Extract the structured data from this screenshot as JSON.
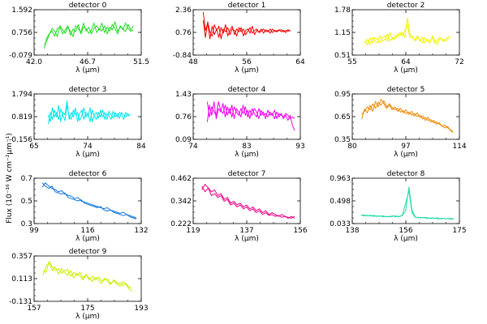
{
  "figure": {
    "ylabel": "Flux (10⁻¹⁶ W cm⁻²µm⁻¹)",
    "xlabel": "λ (µm)"
  },
  "chart_data": [
    {
      "type": "line",
      "title": "detector 0",
      "color": "#22dd22",
      "xlim": [
        42.0,
        51.5
      ],
      "ylim": [
        -0.079,
        1.592
      ],
      "xticks": [
        "42.0",
        "46.7",
        "51.5"
      ],
      "yticks": [
        "-0.079",
        "0.756",
        "1.592"
      ],
      "x_start": 42.9,
      "x_end": 50.8,
      "series": [
        {
          "values": [
            0.15,
            0.55,
            0.72,
            0.8,
            0.62,
            0.9,
            0.95,
            0.7,
            0.85,
            1.0,
            0.65,
            0.88,
            0.78,
            1.05,
            0.7,
            0.95,
            0.9,
            0.72,
            0.85,
            1.1,
            0.75,
            0.9,
            0.8,
            1.0,
            0.7,
            0.95,
            0.85,
            1.15,
            0.8,
            0.95,
            0.9,
            0.78,
            1.05,
            0.85,
            1.0
          ]
        },
        {
          "values": [
            0.3,
            0.45,
            0.7,
            0.9,
            0.8,
            0.6,
            1.0,
            0.85,
            0.72,
            0.95,
            0.8,
            0.6,
            1.0,
            0.9,
            0.75,
            1.1,
            0.8,
            0.95,
            0.7,
            0.9,
            1.0,
            0.85,
            1.1,
            0.75,
            0.95,
            0.8,
            1.05,
            0.9,
            0.7,
            1.0,
            0.85,
            1.1,
            0.9,
            0.8,
            0.85
          ]
        }
      ]
    },
    {
      "type": "line",
      "title": "detector 1",
      "color": "#ee0000",
      "xlim": [
        48,
        64
      ],
      "ylim": [
        -0.84,
        2.36
      ],
      "xticks": [
        "48",
        "56",
        "64"
      ],
      "yticks": [
        "-0.84",
        "0.76",
        "2.36"
      ],
      "x_start": 49.5,
      "x_end": 62.5,
      "series": [
        {
          "values": [
            2.2,
            0.9,
            1.4,
            0.3,
            1.2,
            0.6,
            1.0,
            0.4,
            1.1,
            0.7,
            1.3,
            0.5,
            0.9,
            1.2,
            0.6,
            1.0,
            0.8,
            1.1,
            0.5,
            0.9,
            1.0,
            0.7,
            1.2,
            0.6,
            0.9,
            0.8,
            1.0,
            0.7,
            0.95,
            0.8,
            1.0,
            0.75,
            0.9,
            0.85,
            0.95,
            0.8,
            0.9,
            0.75,
            0.95,
            0.85
          ]
        },
        {
          "values": [
            1.6,
            0.4,
            1.5,
            0.8,
            0.5,
            1.3,
            0.9,
            1.2,
            0.3,
            1.0,
            0.8,
            1.1,
            0.6,
            1.0,
            0.9,
            0.5,
            1.1,
            0.8,
            1.0,
            0.6,
            0.85,
            1.1,
            0.7,
            0.9,
            1.0,
            0.75,
            0.85,
            1.0,
            0.8,
            0.9,
            0.7,
            1.0,
            0.85,
            0.8,
            0.9,
            0.95,
            0.8,
            0.9,
            0.85,
            0.9
          ]
        }
      ]
    },
    {
      "type": "line",
      "title": "detector 2",
      "color": "#f2f200",
      "xlim": [
        55,
        72
      ],
      "ylim": [
        0.51,
        1.78
      ],
      "xticks": [
        "55",
        "64",
        "72"
      ],
      "yticks": [
        "0.51",
        "1.15",
        "1.78"
      ],
      "x_start": 57,
      "x_end": 70.5,
      "series": [
        {
          "values": [
            0.85,
            0.95,
            0.8,
            1.0,
            0.9,
            0.85,
            1.05,
            0.9,
            0.95,
            1.1,
            0.9,
            1.0,
            0.95,
            1.1,
            1.05,
            1.15,
            1.0,
            1.55,
            1.1,
            1.0,
            0.95,
            1.05,
            0.9,
            1.0,
            0.85,
            0.95,
            0.9,
            1.0,
            0.85,
            0.95,
            1.0,
            0.9,
            0.95,
            1.0,
            1.05
          ]
        },
        {
          "values": [
            0.9,
            0.8,
            1.0,
            0.85,
            1.0,
            0.95,
            0.85,
            1.0,
            1.05,
            0.9,
            1.15,
            0.95,
            1.05,
            1.0,
            1.15,
            1.05,
            1.2,
            1.35,
            1.0,
            1.05,
            0.9,
            1.0,
            0.95,
            0.85,
            1.0,
            0.9,
            0.85,
            1.05,
            0.9,
            0.8,
            1.0,
            0.95,
            0.9,
            0.95,
            1.0
          ]
        }
      ]
    },
    {
      "type": "line",
      "title": "detector 3",
      "color": "#00e5ee",
      "xlim": [
        65,
        84
      ],
      "ylim": [
        -0.156,
        1.794
      ],
      "xticks": [
        "65",
        "74",
        "84"
      ],
      "yticks": [
        "-0.156",
        "0.819",
        "1.794"
      ],
      "x_start": 67.5,
      "x_end": 82,
      "series": [
        {
          "values": [
            0.5,
            1.0,
            0.7,
            1.1,
            0.8,
            1.3,
            0.6,
            1.0,
            0.9,
            1.5,
            0.7,
            1.0,
            0.8,
            1.2,
            0.6,
            0.95,
            1.1,
            0.7,
            1.0,
            0.85,
            1.2,
            0.6,
            0.9,
            1.0,
            0.75,
            1.1,
            0.8,
            1.0,
            0.7,
            1.05,
            0.9,
            0.75,
            1.0,
            0.8,
            1.0,
            0.9,
            0.7,
            1.0,
            0.85,
            0.9
          ]
        },
        {
          "values": [
            0.9,
            0.6,
            1.2,
            0.8,
            1.0,
            0.7,
            1.15,
            0.9,
            0.65,
            1.3,
            0.85,
            0.7,
            1.1,
            0.9,
            1.0,
            0.65,
            0.85,
            1.2,
            0.8,
            0.95,
            0.6,
            1.1,
            0.85,
            0.7,
            1.0,
            0.8,
            1.1,
            0.7,
            0.95,
            0.85,
            0.7,
            1.05,
            0.8,
            0.95,
            0.75,
            1.0,
            0.9,
            0.8,
            0.95,
            0.85
          ]
        }
      ]
    },
    {
      "type": "line",
      "title": "detector 4",
      "color": "#ee00ee",
      "xlim": [
        74,
        93
      ],
      "ylim": [
        0.09,
        1.43
      ],
      "xticks": [
        "74",
        "83",
        "93"
      ],
      "yticks": [
        "0.09",
        "0.76",
        "1.43"
      ],
      "x_start": 76.5,
      "x_end": 92,
      "series": [
        {
          "values": [
            0.6,
            1.1,
            0.8,
            1.2,
            0.7,
            1.0,
            0.9,
            1.15,
            0.75,
            1.05,
            0.85,
            1.1,
            0.7,
            1.0,
            0.9,
            0.75,
            1.1,
            0.8,
            0.95,
            0.7,
            1.0,
            0.85,
            0.75,
            1.0,
            0.8,
            0.9,
            0.7,
            0.95,
            0.8,
            0.85,
            0.7,
            0.9,
            0.75,
            0.85,
            0.7,
            0.8,
            0.65,
            0.8,
            0.5,
            0.35
          ]
        },
        {
          "values": [
            1.2,
            0.75,
            1.05,
            0.9,
            0.8,
            1.2,
            0.95,
            0.85,
            1.1,
            0.8,
            1.0,
            0.75,
            1.05,
            0.9,
            0.8,
            1.0,
            0.85,
            1.05,
            0.75,
            0.95,
            0.8,
            1.0,
            0.9,
            0.7,
            0.95,
            0.8,
            0.85,
            0.75,
            0.9,
            0.8,
            0.95,
            0.7,
            0.85,
            0.8,
            0.75,
            0.85,
            0.8,
            0.7,
            0.75,
            0.7
          ]
        }
      ]
    },
    {
      "type": "line",
      "title": "detector 5",
      "color": "#ee8800",
      "xlim": [
        80,
        114
      ],
      "ylim": [
        0.35,
        0.95
      ],
      "xticks": [
        "80",
        "97",
        "114"
      ],
      "yticks": [
        "0.35",
        "0.65",
        "0.95"
      ],
      "x_start": 83,
      "x_end": 112,
      "series": [
        {
          "values": [
            0.62,
            0.75,
            0.7,
            0.8,
            0.72,
            0.85,
            0.78,
            0.88,
            0.82,
            0.76,
            0.8,
            0.74,
            0.78,
            0.72,
            0.76,
            0.7,
            0.74,
            0.68,
            0.72,
            0.66,
            0.7,
            0.64,
            0.66,
            0.6,
            0.64,
            0.58,
            0.6,
            0.55,
            0.57,
            0.52,
            0.54,
            0.5,
            0.48,
            0.45
          ]
        },
        {
          "values": [
            0.68,
            0.72,
            0.78,
            0.74,
            0.82,
            0.76,
            0.84,
            0.8,
            0.86,
            0.78,
            0.82,
            0.77,
            0.74,
            0.76,
            0.71,
            0.73,
            0.69,
            0.71,
            0.67,
            0.69,
            0.65,
            0.67,
            0.62,
            0.64,
            0.6,
            0.61,
            0.57,
            0.58,
            0.55,
            0.53,
            0.5,
            0.52,
            0.47,
            0.44
          ]
        }
      ]
    },
    {
      "type": "line",
      "title": "detector 6",
      "color": "#1177dd",
      "xlim": [
        99,
        132
      ],
      "ylim": [
        0.3,
        0.7
      ],
      "xticks": [
        "99",
        "116",
        "132"
      ],
      "yticks": [
        "0.3",
        "0.5",
        "0.7"
      ],
      "x_start": 101.5,
      "x_end": 130.5,
      "series": [
        {
          "values": [
            0.62,
            0.66,
            0.63,
            0.61,
            0.6,
            0.58,
            0.59,
            0.56,
            0.55,
            0.54,
            0.52,
            0.53,
            0.5,
            0.49,
            0.48,
            0.47,
            0.46,
            0.45,
            0.44,
            0.43,
            0.44,
            0.42,
            0.41,
            0.4,
            0.39,
            0.4,
            0.38,
            0.37,
            0.36,
            0.35
          ]
        },
        {
          "values": [
            0.66,
            0.63,
            0.61,
            0.63,
            0.58,
            0.57,
            0.56,
            0.57,
            0.53,
            0.52,
            0.51,
            0.5,
            0.51,
            0.48,
            0.47,
            0.46,
            0.45,
            0.44,
            0.45,
            0.42,
            0.41,
            0.42,
            0.4,
            0.39,
            0.38,
            0.37,
            0.38,
            0.36,
            0.35,
            0.34
          ]
        }
      ]
    },
    {
      "type": "line",
      "title": "detector 7",
      "color": "#ee0088",
      "xlim": [
        119,
        156
      ],
      "ylim": [
        0.222,
        0.462
      ],
      "xticks": [
        "119",
        "137",
        "156"
      ],
      "yticks": [
        "0.222",
        "0.342",
        "0.462"
      ],
      "x_start": 122,
      "x_end": 154,
      "series": [
        {
          "values": [
            0.4,
            0.43,
            0.41,
            0.39,
            0.4,
            0.37,
            0.38,
            0.35,
            0.36,
            0.33,
            0.34,
            0.32,
            0.33,
            0.31,
            0.32,
            0.3,
            0.31,
            0.29,
            0.3,
            0.28,
            0.29,
            0.27,
            0.28,
            0.27,
            0.26,
            0.27,
            0.26,
            0.25,
            0.26,
            0.25
          ]
        },
        {
          "values": [
            0.42,
            0.39,
            0.41,
            0.37,
            0.38,
            0.36,
            0.37,
            0.34,
            0.35,
            0.32,
            0.33,
            0.31,
            0.32,
            0.3,
            0.31,
            0.29,
            0.3,
            0.28,
            0.29,
            0.27,
            0.28,
            0.265,
            0.27,
            0.26,
            0.265,
            0.255,
            0.26,
            0.255,
            0.25,
            0.26
          ]
        }
      ]
    },
    {
      "type": "line",
      "title": "detector 8",
      "color": "#22ddaa",
      "xlim": [
        138,
        175
      ],
      "ylim": [
        0.033,
        0.963
      ],
      "xticks": [
        "138",
        "156",
        "175"
      ],
      "yticks": [
        "0.033",
        "0.498",
        "0.963"
      ],
      "x_start": 141,
      "x_end": 173,
      "series": [
        {
          "values": [
            0.2,
            0.21,
            0.19,
            0.2,
            0.18,
            0.19,
            0.18,
            0.19,
            0.17,
            0.18,
            0.19,
            0.17,
            0.18,
            0.2,
            0.3,
            0.78,
            0.3,
            0.17,
            0.15,
            0.16,
            0.15,
            0.14,
            0.15,
            0.14,
            0.15,
            0.13,
            0.14,
            0.13,
            0.14,
            0.13
          ]
        },
        {
          "values": [
            0.21,
            0.19,
            0.2,
            0.19,
            0.2,
            0.18,
            0.19,
            0.17,
            0.18,
            0.17,
            0.18,
            0.19,
            0.17,
            0.21,
            0.45,
            0.7,
            0.25,
            0.16,
            0.16,
            0.15,
            0.16,
            0.15,
            0.14,
            0.15,
            0.13,
            0.14,
            0.14,
            0.13,
            0.13,
            0.12
          ]
        }
      ]
    },
    {
      "type": "line",
      "title": "detector 9",
      "color": "#ccee00",
      "xlim": [
        157,
        193
      ],
      "ylim": [
        -0.131,
        0.357
      ],
      "xticks": [
        "157",
        "175",
        "193"
      ],
      "yticks": [
        "-0.131",
        "0.113",
        "0.357"
      ],
      "x_start": 160,
      "x_end": 190,
      "series": [
        {
          "values": [
            0.15,
            0.25,
            0.28,
            0.2,
            0.24,
            0.16,
            0.22,
            0.18,
            0.15,
            0.2,
            0.12,
            0.17,
            0.14,
            0.1,
            0.15,
            0.12,
            0.08,
            0.13,
            0.1,
            0.06,
            0.12,
            0.08,
            0.05,
            0.1,
            0.07,
            0.03,
            0.08,
            0.05,
            0.0,
            -0.02
          ]
        },
        {
          "values": [
            0.2,
            0.18,
            0.3,
            0.24,
            0.2,
            0.22,
            0.17,
            0.2,
            0.21,
            0.14,
            0.18,
            0.15,
            0.18,
            0.12,
            0.16,
            0.1,
            0.14,
            0.1,
            0.13,
            0.09,
            0.1,
            0.11,
            0.06,
            0.09,
            0.05,
            0.07,
            0.04,
            0.06,
            0.02,
            0.01
          ]
        }
      ]
    }
  ]
}
